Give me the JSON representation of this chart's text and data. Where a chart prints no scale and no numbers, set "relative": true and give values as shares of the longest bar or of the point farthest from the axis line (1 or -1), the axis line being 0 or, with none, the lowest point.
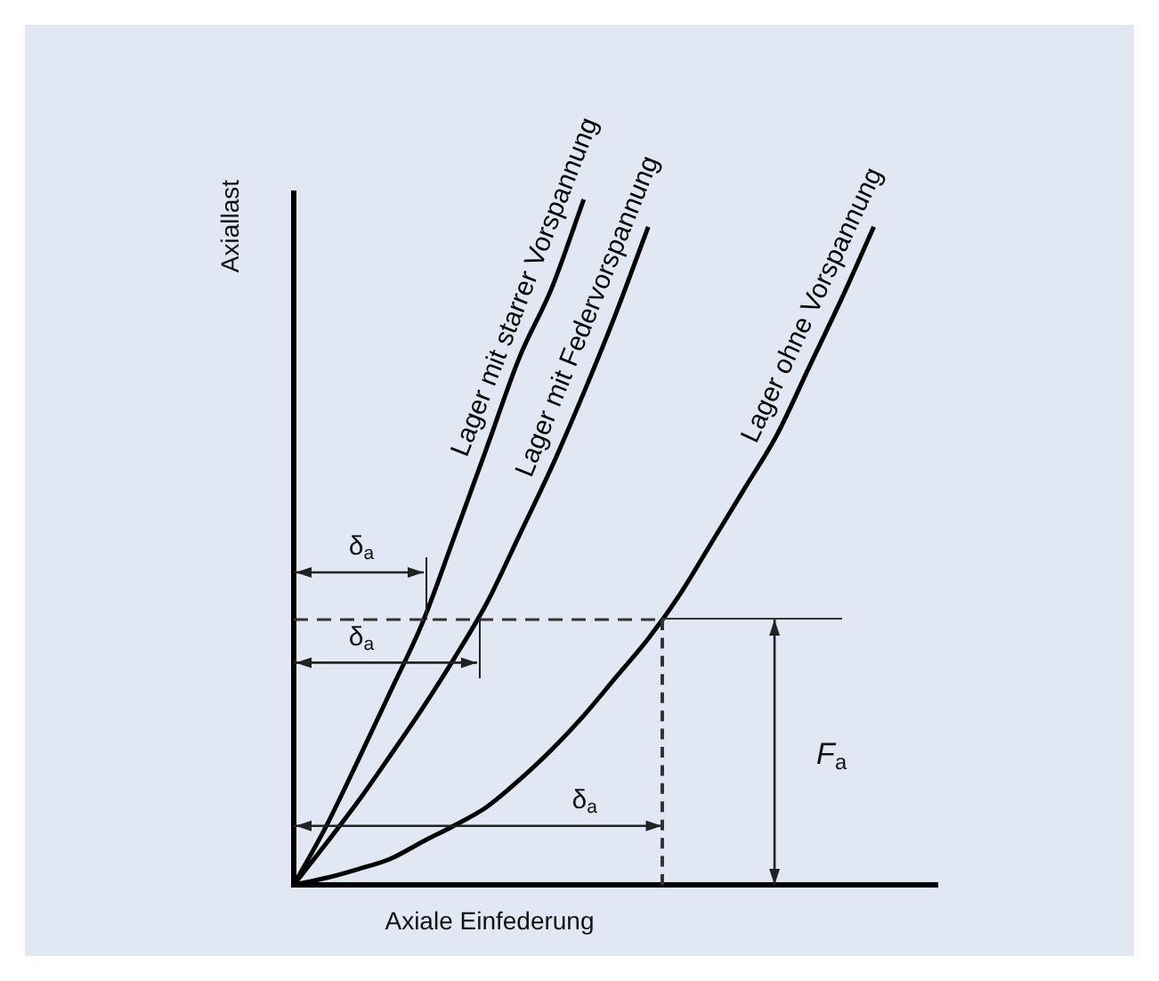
{
  "chart_data": {
    "type": "line",
    "relative": true,
    "xlabel": "Axiale Einfederung",
    "ylabel": "Axiallast",
    "legend": false,
    "grid": false,
    "marker": "none",
    "line_style": "solid",
    "categories": [
      null,
      null,
      null,
      null,
      null,
      null,
      null,
      null,
      null,
      null,
      null,
      null,
      null,
      null,
      null,
      null,
      null,
      null,
      null,
      null,
      null
    ],
    "series": [
      {
        "name": "Lager mit starrer Vorspannung",
        "color": "#000000",
        "values": [
          0,
          0.085,
          0.182,
          0.282,
          0.383,
          0.51,
          0.639,
          0.769,
          0.87,
          1,
          null,
          null,
          null,
          null,
          null,
          null,
          null,
          null,
          null,
          null,
          null
        ]
      },
      {
        "name": "Lager mit Federvorspannung",
        "color": "#000000",
        "values": [
          0,
          0.06,
          0.122,
          0.189,
          0.258,
          0.332,
          0.412,
          0.51,
          0.609,
          0.718,
          0.834,
          0.96,
          null,
          null,
          null,
          null,
          null,
          null,
          null,
          null,
          null
        ]
      },
      {
        "name": "Lager ohne Vorspannung",
        "color": "#000000",
        "values": [
          0,
          0.01,
          0.023,
          0.038,
          0.063,
          0.087,
          0.114,
          0.153,
          0.197,
          0.247,
          0.303,
          0.359,
          0.425,
          0.502,
          0.579,
          0.657,
          0.756,
          0.855,
          0.96,
          null,
          null
        ]
      }
    ],
    "ref_lines": [
      {
        "axis": "y",
        "value": 0.387,
        "color": "#333333",
        "line_style": "dashed"
      }
    ],
    "annotations": [
      "δ$_{a}$",
      "δ$_{a}$",
      "δ$_{a}$",
      "F$_{a}$"
    ]
  }
}
